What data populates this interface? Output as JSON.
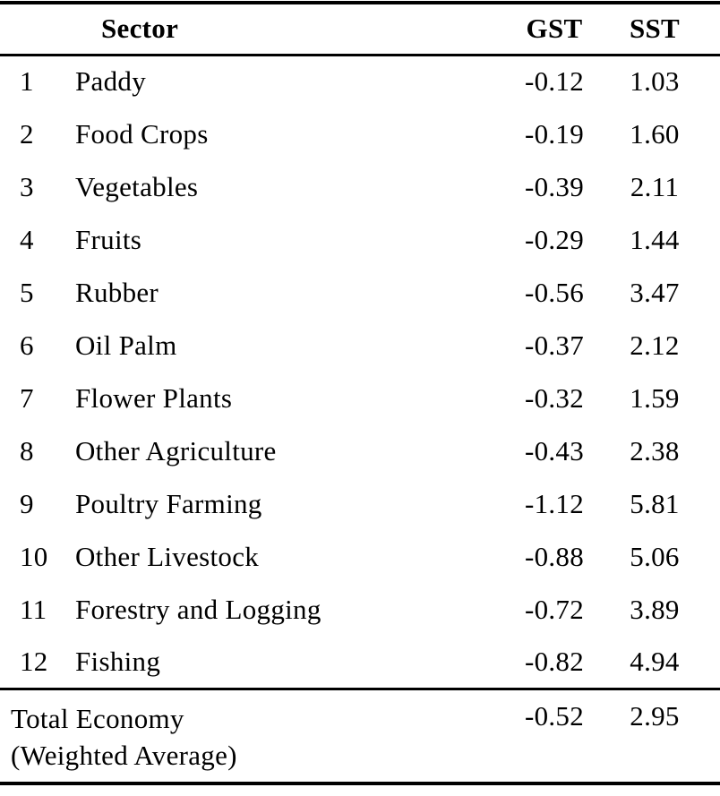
{
  "table": {
    "headers": {
      "sector": "Sector",
      "gst": "GST",
      "sst": "SST"
    },
    "rows": [
      {
        "num": "1",
        "sector": "Paddy",
        "gst": "-0.12",
        "sst": "1.03"
      },
      {
        "num": "2",
        "sector": "Food Crops",
        "gst": "-0.19",
        "sst": "1.60"
      },
      {
        "num": "3",
        "sector": "Vegetables",
        "gst": "-0.39",
        "sst": "2.11"
      },
      {
        "num": "4",
        "sector": "Fruits",
        "gst": "-0.29",
        "sst": "1.44"
      },
      {
        "num": "5",
        "sector": "Rubber",
        "gst": "-0.56",
        "sst": "3.47"
      },
      {
        "num": "6",
        "sector": "Oil Palm",
        "gst": "-0.37",
        "sst": "2.12"
      },
      {
        "num": "7",
        "sector": "Flower Plants",
        "gst": "-0.32",
        "sst": "1.59"
      },
      {
        "num": "8",
        "sector": "Other Agriculture",
        "gst": "-0.43",
        "sst": "2.38"
      },
      {
        "num": "9",
        "sector": "Poultry Farming",
        "gst": "-1.12",
        "sst": "5.81"
      },
      {
        "num": "10",
        "sector": "Other Livestock",
        "gst": "-0.88",
        "sst": "5.06"
      },
      {
        "num": "11",
        "sector": "Forestry and Logging",
        "gst": "-0.72",
        "sst": "3.89"
      },
      {
        "num": "12",
        "sector": "Fishing",
        "gst": "-0.82",
        "sst": "4.94"
      }
    ],
    "total": {
      "label_line1": "Total Economy",
      "label_line2": "(Weighted Average)",
      "gst": "-0.52",
      "sst": "2.95"
    }
  },
  "colors": {
    "text": "#000000",
    "background": "#ffffff",
    "rule": "#000000"
  }
}
